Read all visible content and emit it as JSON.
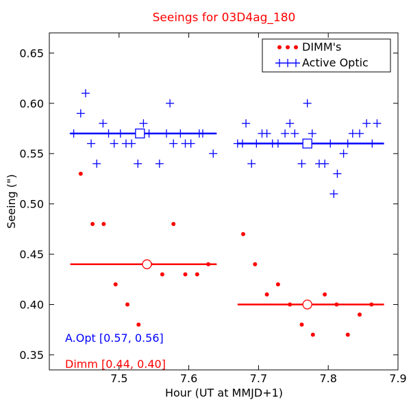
{
  "colors": {
    "dimm": "#ff0000",
    "active_optic": "#0000ff",
    "axis": "#000000",
    "background": "#ffffff"
  },
  "chart_data": {
    "type": "scatter",
    "title": "Seeings for 03D4ag_180",
    "xlabel": "Hour (UT at MMJD+1)",
    "ylabel": "Seeing (\")",
    "xlim": [
      7.4,
      7.9
    ],
    "ylim": [
      0.335,
      0.67
    ],
    "x_ticks": [
      7.5,
      7.6,
      7.7,
      7.8,
      7.9
    ],
    "x_tick_labels": [
      "7.5",
      "7.6",
      "7.7",
      "7.8",
      "7.9"
    ],
    "y_ticks": [
      0.35,
      0.4,
      0.45,
      0.5,
      0.55,
      0.6,
      0.65
    ],
    "y_tick_labels": [
      "0.35",
      "0.40",
      "0.45",
      "0.50",
      "0.55",
      "0.60",
      "0.65"
    ],
    "grid": false,
    "legend_position": "top-right",
    "series": [
      {
        "name": "DIMM's",
        "marker": "dot",
        "color": "#ff0000",
        "points": [
          [
            7.445,
            0.53
          ],
          [
            7.462,
            0.48
          ],
          [
            7.478,
            0.48
          ],
          [
            7.495,
            0.42
          ],
          [
            7.512,
            0.4
          ],
          [
            7.528,
            0.38
          ],
          [
            7.545,
            0.44
          ],
          [
            7.562,
            0.43
          ],
          [
            7.578,
            0.48
          ],
          [
            7.595,
            0.43
          ],
          [
            7.612,
            0.43
          ],
          [
            7.628,
            0.44
          ],
          [
            7.678,
            0.47
          ],
          [
            7.695,
            0.44
          ],
          [
            7.712,
            0.41
          ],
          [
            7.728,
            0.42
          ],
          [
            7.745,
            0.4
          ],
          [
            7.762,
            0.38
          ],
          [
            7.778,
            0.37
          ],
          [
            7.795,
            0.41
          ],
          [
            7.812,
            0.4
          ],
          [
            7.828,
            0.37
          ],
          [
            7.845,
            0.39
          ],
          [
            7.862,
            0.4
          ]
        ]
      },
      {
        "name": "Active Optic",
        "marker": "plus",
        "color": "#0000ff",
        "points": [
          [
            7.435,
            0.57
          ],
          [
            7.445,
            0.59
          ],
          [
            7.452,
            0.61
          ],
          [
            7.46,
            0.56
          ],
          [
            7.468,
            0.54
          ],
          [
            7.477,
            0.58
          ],
          [
            7.485,
            0.57
          ],
          [
            7.493,
            0.56
          ],
          [
            7.502,
            0.57
          ],
          [
            7.51,
            0.56
          ],
          [
            7.518,
            0.56
          ],
          [
            7.527,
            0.54
          ],
          [
            7.535,
            0.58
          ],
          [
            7.543,
            0.57
          ],
          [
            7.558,
            0.54
          ],
          [
            7.568,
            0.57
          ],
          [
            7.573,
            0.6
          ],
          [
            7.578,
            0.56
          ],
          [
            7.588,
            0.57
          ],
          [
            7.595,
            0.56
          ],
          [
            7.603,
            0.56
          ],
          [
            7.615,
            0.57
          ],
          [
            7.62,
            0.57
          ],
          [
            7.635,
            0.55
          ],
          [
            7.67,
            0.56
          ],
          [
            7.677,
            0.56
          ],
          [
            7.682,
            0.58
          ],
          [
            7.69,
            0.54
          ],
          [
            7.697,
            0.56
          ],
          [
            7.705,
            0.57
          ],
          [
            7.712,
            0.57
          ],
          [
            7.72,
            0.56
          ],
          [
            7.728,
            0.56
          ],
          [
            7.738,
            0.57
          ],
          [
            7.745,
            0.58
          ],
          [
            7.752,
            0.57
          ],
          [
            7.762,
            0.54
          ],
          [
            7.77,
            0.6
          ],
          [
            7.777,
            0.57
          ],
          [
            7.787,
            0.54
          ],
          [
            7.795,
            0.54
          ],
          [
            7.803,
            0.56
          ],
          [
            7.808,
            0.51
          ],
          [
            7.813,
            0.53
          ],
          [
            7.822,
            0.55
          ],
          [
            7.828,
            0.56
          ],
          [
            7.835,
            0.57
          ],
          [
            7.845,
            0.57
          ],
          [
            7.855,
            0.58
          ],
          [
            7.863,
            0.56
          ],
          [
            7.87,
            0.58
          ]
        ]
      }
    ],
    "mean_lines": [
      {
        "series": "Active Optic",
        "x_start": 7.43,
        "x_end": 7.64,
        "value": 0.57,
        "marker_x": 7.53,
        "marker": "square"
      },
      {
        "series": "Active Optic",
        "x_start": 7.67,
        "x_end": 7.88,
        "value": 0.56,
        "marker_x": 7.77,
        "marker": "square"
      },
      {
        "series": "DIMM's",
        "x_start": 7.43,
        "x_end": 7.64,
        "value": 0.44,
        "marker_x": 7.54,
        "marker": "circle"
      },
      {
        "series": "DIMM's",
        "x_start": 7.67,
        "x_end": 7.88,
        "value": 0.4,
        "marker_x": 7.77,
        "marker": "circle"
      }
    ],
    "annotations": [
      {
        "text": "A.Opt [0.57, 0.56]",
        "color": "#0000ff",
        "placement": "lower-left"
      },
      {
        "text": "Dimm [0.44, 0.40]",
        "color": "#ff0000",
        "placement": "bottom-left"
      }
    ]
  }
}
